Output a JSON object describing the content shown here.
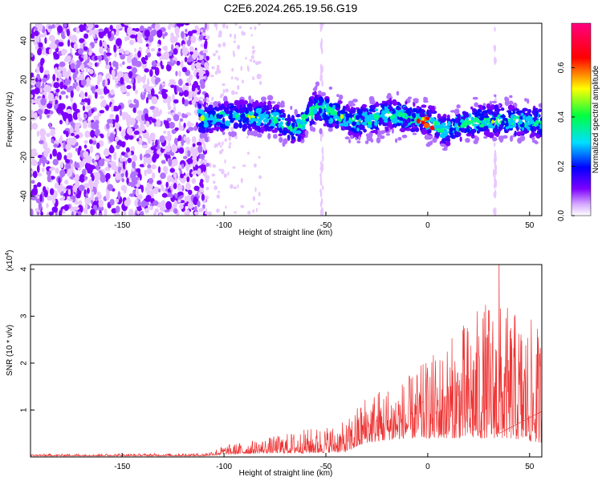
{
  "figure_title": "C2E6.2024.265.19.56.G19",
  "chart_data": [
    {
      "type": "heatmap",
      "xlabel": "Height of straight line (km)",
      "ylabel": "Frequency (Hz)",
      "xlim": [
        -195,
        56
      ],
      "ylim": [
        -50,
        49
      ],
      "x_ticks": [
        -150,
        -100,
        -50,
        0,
        50
      ],
      "y_ticks": [
        -40,
        -20,
        0,
        20,
        40
      ],
      "colorbar": {
        "label": "Normalized spectral amplitude",
        "range": [
          0.0,
          0.78
        ],
        "ticks": [
          0.0,
          0.2,
          0.4,
          0.6
        ],
        "tick_labels": [
          "0.0",
          "0.2",
          "0.4",
          "0.6"
        ],
        "colors": [
          "#ffffff",
          "#7d00ff",
          "#0000ff",
          "#00e0ff",
          "#00ff40",
          "#ffff00",
          "#ff0000",
          "#ff0080"
        ]
      },
      "noise_region_x": [
        -195,
        -108
      ],
      "signal_band_x": [
        -112,
        56
      ],
      "signal_band_center_freq": [
        {
          "x": -110,
          "y": 0
        },
        {
          "x": -90,
          "y": 1
        },
        {
          "x": -75,
          "y": 0
        },
        {
          "x": -65,
          "y": -6
        },
        {
          "x": -55,
          "y": 6
        },
        {
          "x": -45,
          "y": 2
        },
        {
          "x": -35,
          "y": -2
        },
        {
          "x": -20,
          "y": 2
        },
        {
          "x": -10,
          "y": 1
        },
        {
          "x": 0,
          "y": -1
        },
        {
          "x": 8,
          "y": -6
        },
        {
          "x": 20,
          "y": -2
        },
        {
          "x": 30,
          "y": -1
        },
        {
          "x": 40,
          "y": -1
        },
        {
          "x": 56,
          "y": -2
        }
      ],
      "peak_amplitude": {
        "x": 0,
        "y": 0,
        "value": 0.75
      },
      "vertical_artifacts_x": [
        33,
        -52
      ]
    },
    {
      "type": "line",
      "xlabel": "Height of straight line (km)",
      "ylabel": "SNR (10 * v/v)",
      "y_multiplier_label": "(x10",
      "y_multiplier_exponent": "4",
      "y_multiplier_close": ")",
      "xlim": [
        -195,
        56
      ],
      "ylim": [
        0,
        4.1
      ],
      "x_ticks": [
        -150,
        -100,
        -50,
        0,
        50
      ],
      "y_ticks": [
        1,
        2,
        3,
        4
      ],
      "series": [
        {
          "color": "#ee3333",
          "envelope": [
            {
              "x": -195,
              "base": 0.02,
              "peak": 0.06
            },
            {
              "x": -110,
              "base": 0.02,
              "peak": 0.08
            },
            {
              "x": -100,
              "base": 0.05,
              "peak": 0.25
            },
            {
              "x": -80,
              "base": 0.08,
              "peak": 0.4
            },
            {
              "x": -60,
              "base": 0.08,
              "peak": 0.6
            },
            {
              "x": -40,
              "base": 0.1,
              "peak": 0.75
            },
            {
              "x": -30,
              "base": 0.3,
              "peak": 1.4
            },
            {
              "x": -10,
              "base": 0.4,
              "peak": 1.7
            },
            {
              "x": 0,
              "base": 0.4,
              "peak": 2.1
            },
            {
              "x": 10,
              "base": 0.4,
              "peak": 2.5
            },
            {
              "x": 20,
              "base": 0.4,
              "peak": 3.0
            },
            {
              "x": 30,
              "base": 0.4,
              "peak": 3.4
            },
            {
              "x": 40,
              "base": 0.4,
              "peak": 3.2
            },
            {
              "x": 56,
              "base": 0.3,
              "peak": 2.8
            }
          ],
          "max_point": {
            "x": 35,
            "y": 4.1
          }
        }
      ]
    }
  ]
}
